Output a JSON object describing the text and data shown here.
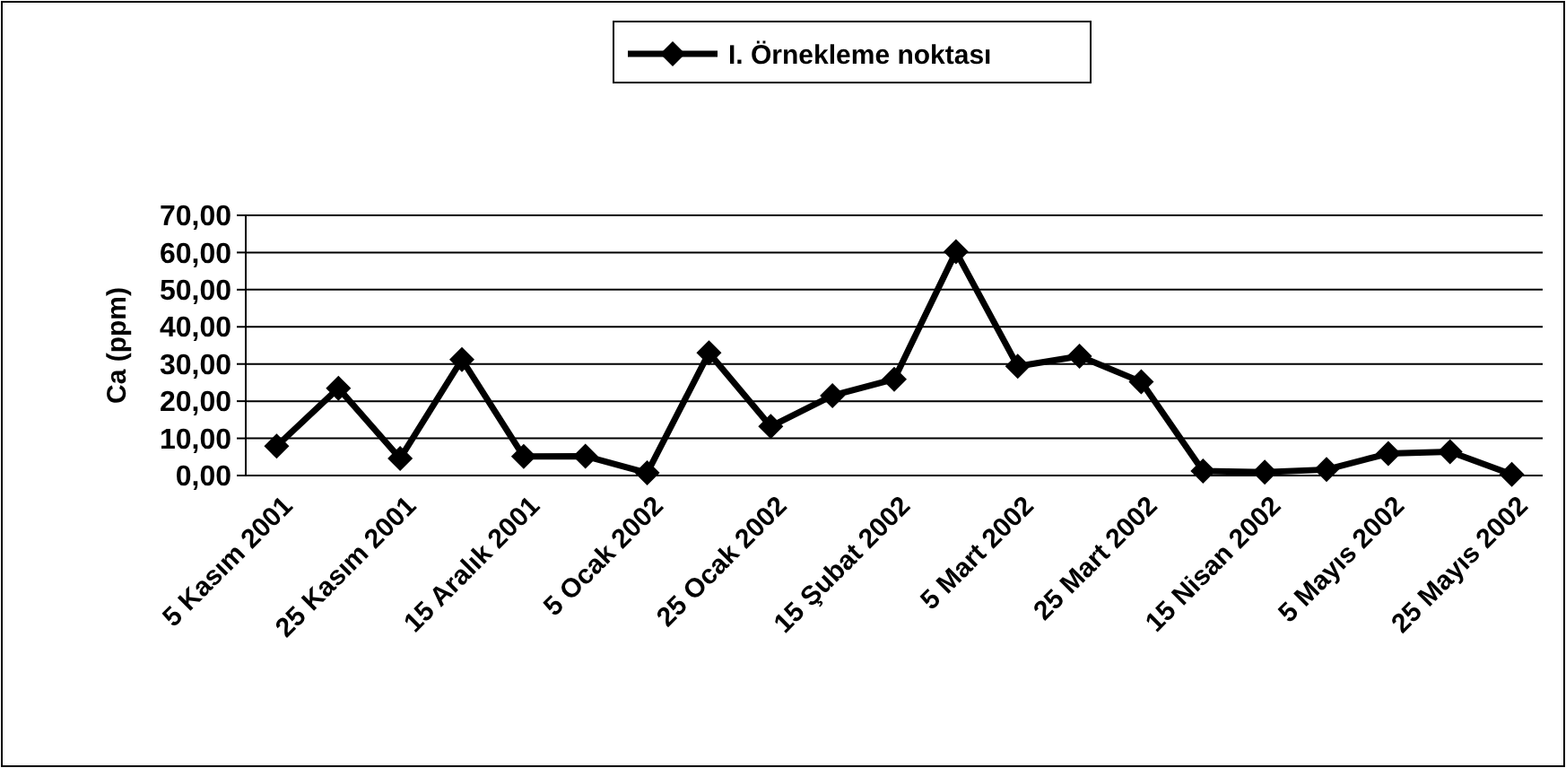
{
  "chart_data": {
    "type": "line",
    "ylabel": "Ca (ppm)",
    "categories": [
      "5 Kasım 2001",
      null,
      "25 Kasım 2001",
      null,
      "15 Aralık 2001",
      null,
      "5 Ocak 2002",
      null,
      "25 Ocak 2002",
      null,
      "15 Şubat 2002",
      null,
      "5 Mart 2002",
      null,
      "25 Mart 2002",
      null,
      "15 Nisan 2002",
      null,
      "5 Mayıs 2002",
      null,
      "25 Mayıs 2002"
    ],
    "series": [
      {
        "name": "I. Örnekleme noktası",
        "color": "#000000",
        "values": [
          7.9,
          23.5,
          4.6,
          31.2,
          5.1,
          5.2,
          0.7,
          33,
          13.2,
          21.5,
          25.9,
          60.2,
          29.4,
          32.1,
          25.2,
          1.2,
          0.9,
          1.6,
          5.9,
          6.4,
          0.3
        ]
      }
    ],
    "ylim": [
      0,
      70
    ],
    "yticks": [
      {
        "value": 0,
        "label": "0,00"
      },
      {
        "value": 10,
        "label": "10,00"
      },
      {
        "value": 20,
        "label": "20,00"
      },
      {
        "value": 30,
        "label": "30,00"
      },
      {
        "value": 40,
        "label": "40,00"
      },
      {
        "value": 50,
        "label": "50,00"
      },
      {
        "value": 60,
        "label": "60,00"
      },
      {
        "value": 70,
        "label": "70,00"
      }
    ],
    "grid": "y",
    "legend": "top",
    "marker": "diamond",
    "line_style": "solid"
  }
}
